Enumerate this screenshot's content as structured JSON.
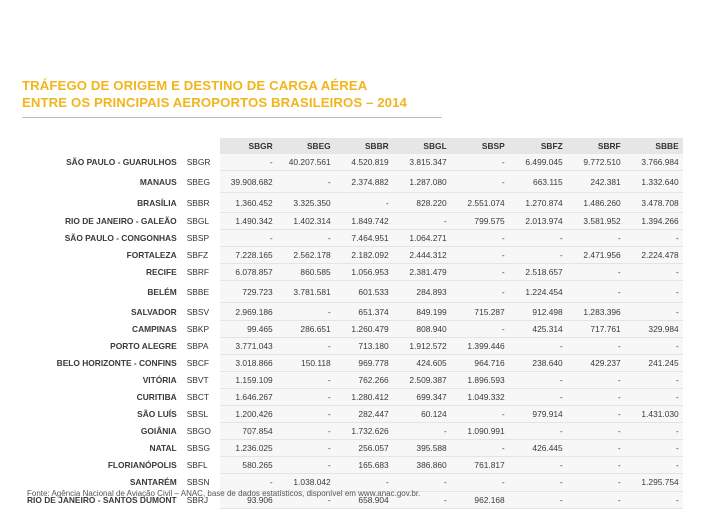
{
  "title": {
    "line1": "TRÁFEGO DE ORIGEM E DESTINO DE CARGA AÉREA",
    "line2": "ENTRE OS PRINCIPAIS AEROPORTOS BRASILEIROS – 2014"
  },
  "table": {
    "columns": [
      "SBGR",
      "SBEG",
      "SBBR",
      "SBGL",
      "SBSP",
      "SBFZ",
      "SBRF",
      "SBBE"
    ],
    "rows": [
      {
        "city": "SÃO PAULO - GUARULHOS",
        "code": "SBGR",
        "values": [
          "-",
          "40.207.561",
          "4.520.819",
          "3.815.347",
          "-",
          "6.499.045",
          "9.772.510",
          "3.766.984"
        ]
      },
      {
        "city": "MANAUS",
        "code": "SBEG",
        "values": [
          "39.908.682",
          "-",
          "2.374.882",
          "1.287.080",
          "-",
          "663.115",
          "242.381",
          "1.332.640"
        ]
      },
      {
        "city": "BRASÍLIA",
        "code": "SBBR",
        "values": [
          "1.360.452",
          "3.325.350",
          "-",
          "828.220",
          "2.551.074",
          "1.270.874",
          "1.486.260",
          "3.478.708"
        ]
      },
      {
        "city": "RIO DE JANEIRO - GALEÃO",
        "code": "SBGL",
        "values": [
          "1.490.342",
          "1.402.314",
          "1.849.742",
          "-",
          "799.575",
          "2.013.974",
          "3.581.952",
          "1.394.266"
        ]
      },
      {
        "city": "SÃO PAULO - CONGONHAS",
        "code": "SBSP",
        "values": [
          "-",
          "-",
          "7.464.951",
          "1.064.271",
          "-",
          "-",
          "-",
          "-"
        ]
      },
      {
        "city": "FORTALEZA",
        "code": "SBFZ",
        "values": [
          "7.228.165",
          "2.562.178",
          "2.182.092",
          "2.444.312",
          "-",
          "-",
          "2.471.956",
          "2.224.478"
        ]
      },
      {
        "city": "RECIFE",
        "code": "SBRF",
        "values": [
          "6.078.857",
          "860.585",
          "1.056.953",
          "2.381.479",
          "-",
          "2.518.657",
          "-",
          "-"
        ]
      },
      {
        "city": "BELÉM",
        "code": "SBBE",
        "values": [
          "729.723",
          "3.781.581",
          "601.533",
          "284.893",
          "-",
          "1.224.454",
          "-",
          "-"
        ]
      },
      {
        "city": "SALVADOR",
        "code": "SBSV",
        "values": [
          "2.969.186",
          "-",
          "651.374",
          "849.199",
          "715.287",
          "912.498",
          "1.283.396",
          "-"
        ]
      },
      {
        "city": "CAMPINAS",
        "code": "SBKP",
        "values": [
          "99.465",
          "286.651",
          "1.260.479",
          "808.940",
          "-",
          "425.314",
          "717.761",
          "329.984"
        ]
      },
      {
        "city": "PORTO ALEGRE",
        "code": "SBPA",
        "values": [
          "3.771.043",
          "-",
          "713.180",
          "1.912.572",
          "1.399.446",
          "-",
          "-",
          "-"
        ]
      },
      {
        "city": "BELO HORIZONTE - CONFINS",
        "code": "SBCF",
        "values": [
          "3.018.866",
          "150.118",
          "969.778",
          "424.605",
          "964.716",
          "238.640",
          "429.237",
          "241.245"
        ]
      },
      {
        "city": "VITÓRIA",
        "code": "SBVT",
        "values": [
          "1.159.109",
          "-",
          "762.266",
          "2.509.387",
          "1.896.593",
          "-",
          "-",
          "-"
        ]
      },
      {
        "city": "CURITIBA",
        "code": "SBCT",
        "values": [
          "1.646.267",
          "-",
          "1.280.412",
          "699.347",
          "1.049.332",
          "-",
          "-",
          "-"
        ]
      },
      {
        "city": "SÃO LUÍS",
        "code": "SBSL",
        "values": [
          "1.200.426",
          "-",
          "282.447",
          "60.124",
          "-",
          "979.914",
          "-",
          "1.431.030"
        ]
      },
      {
        "city": "GOIÂNIA",
        "code": "SBGO",
        "values": [
          "707.854",
          "-",
          "1.732.626",
          "-",
          "1.090.991",
          "-",
          "-",
          "-"
        ]
      },
      {
        "city": "NATAL",
        "code": "SBSG",
        "values": [
          "1.236.025",
          "-",
          "256.057",
          "395.588",
          "-",
          "426.445",
          "-",
          "-"
        ]
      },
      {
        "city": "FLORIANÓPOLIS",
        "code": "SBFL",
        "values": [
          "580.265",
          "-",
          "165.683",
          "386.860",
          "761.817",
          "-",
          "-",
          "-"
        ]
      },
      {
        "city": "SANTARÉM",
        "code": "SBSN",
        "values": [
          "-",
          "1.038.042",
          "-",
          "-",
          "-",
          "-",
          "-",
          "1.295.754"
        ]
      },
      {
        "city": "RIO DE JANEIRO - SANTOS DUMONT",
        "code": "SBRJ",
        "values": [
          "93.906",
          "-",
          "658.904",
          "-",
          "962.168",
          "-",
          "-",
          "-"
        ]
      }
    ]
  },
  "footer": "Fonte: Agência Nacional de Aviação Civil – ANAC, base de dados estatísticos, disponível em www.anac.gov.br."
}
